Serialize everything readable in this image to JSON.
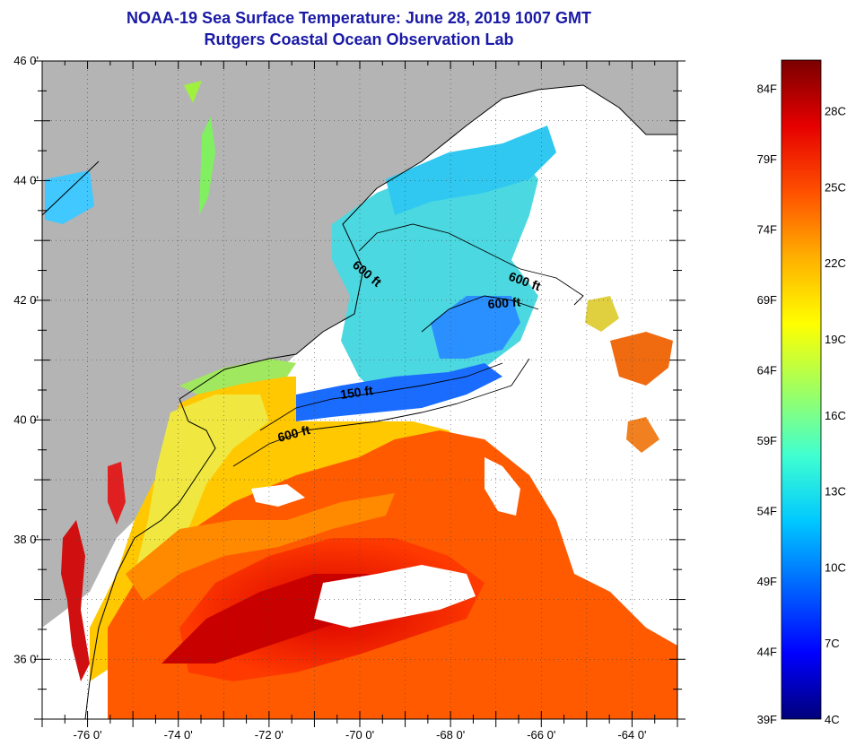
{
  "header": {
    "title": "NOAA-19 Sea Surface Temperature:  June 28, 2019 1007 GMT",
    "subtitle": "Rutgers Coastal Ocean Observation Lab"
  },
  "map": {
    "lon_range": [
      -77,
      -63
    ],
    "lat_range": [
      35,
      46
    ],
    "lat_labels": [
      {
        "value": 46,
        "text": "46 0'"
      },
      {
        "value": 44,
        "text": "44 0'"
      },
      {
        "value": 42,
        "text": "42 0'"
      },
      {
        "value": 40,
        "text": "40 0'"
      },
      {
        "value": 38,
        "text": "38 0'"
      },
      {
        "value": 36,
        "text": "36 0'"
      }
    ],
    "lon_labels": [
      {
        "value": -76,
        "text": "-76 0'"
      },
      {
        "value": -74,
        "text": "-74 0'"
      },
      {
        "value": -72,
        "text": "-72 0'"
      },
      {
        "value": -70,
        "text": "-70 0'"
      },
      {
        "value": -68,
        "text": "-68 0'"
      },
      {
        "value": -66,
        "text": "-66 0'"
      },
      {
        "value": -64,
        "text": "-64 0'"
      }
    ],
    "contour_labels": [
      "600 ft",
      "600 ft",
      "600 ft",
      "150 ft",
      "600 ft"
    ],
    "colors": {
      "land": "#b4b4b4",
      "cloud": "#ffffff",
      "grid": "#555555"
    }
  },
  "colorbar": {
    "fahrenheit_labels": [
      "84F",
      "79F",
      "74F",
      "69F",
      "64F",
      "59F",
      "54F",
      "49F",
      "44F",
      "39F"
    ],
    "celsius_labels": [
      "28C",
      "25C",
      "22C",
      "19C",
      "16C",
      "13C",
      "10C",
      "7C",
      "4C"
    ],
    "range_celsius": [
      4,
      30
    ],
    "stops": [
      "#00007a",
      "#0000ff",
      "#0064ff",
      "#00c8ff",
      "#40ffd0",
      "#a0ff60",
      "#ffff00",
      "#ffb000",
      "#ff5000",
      "#e60000",
      "#7a0000"
    ]
  }
}
